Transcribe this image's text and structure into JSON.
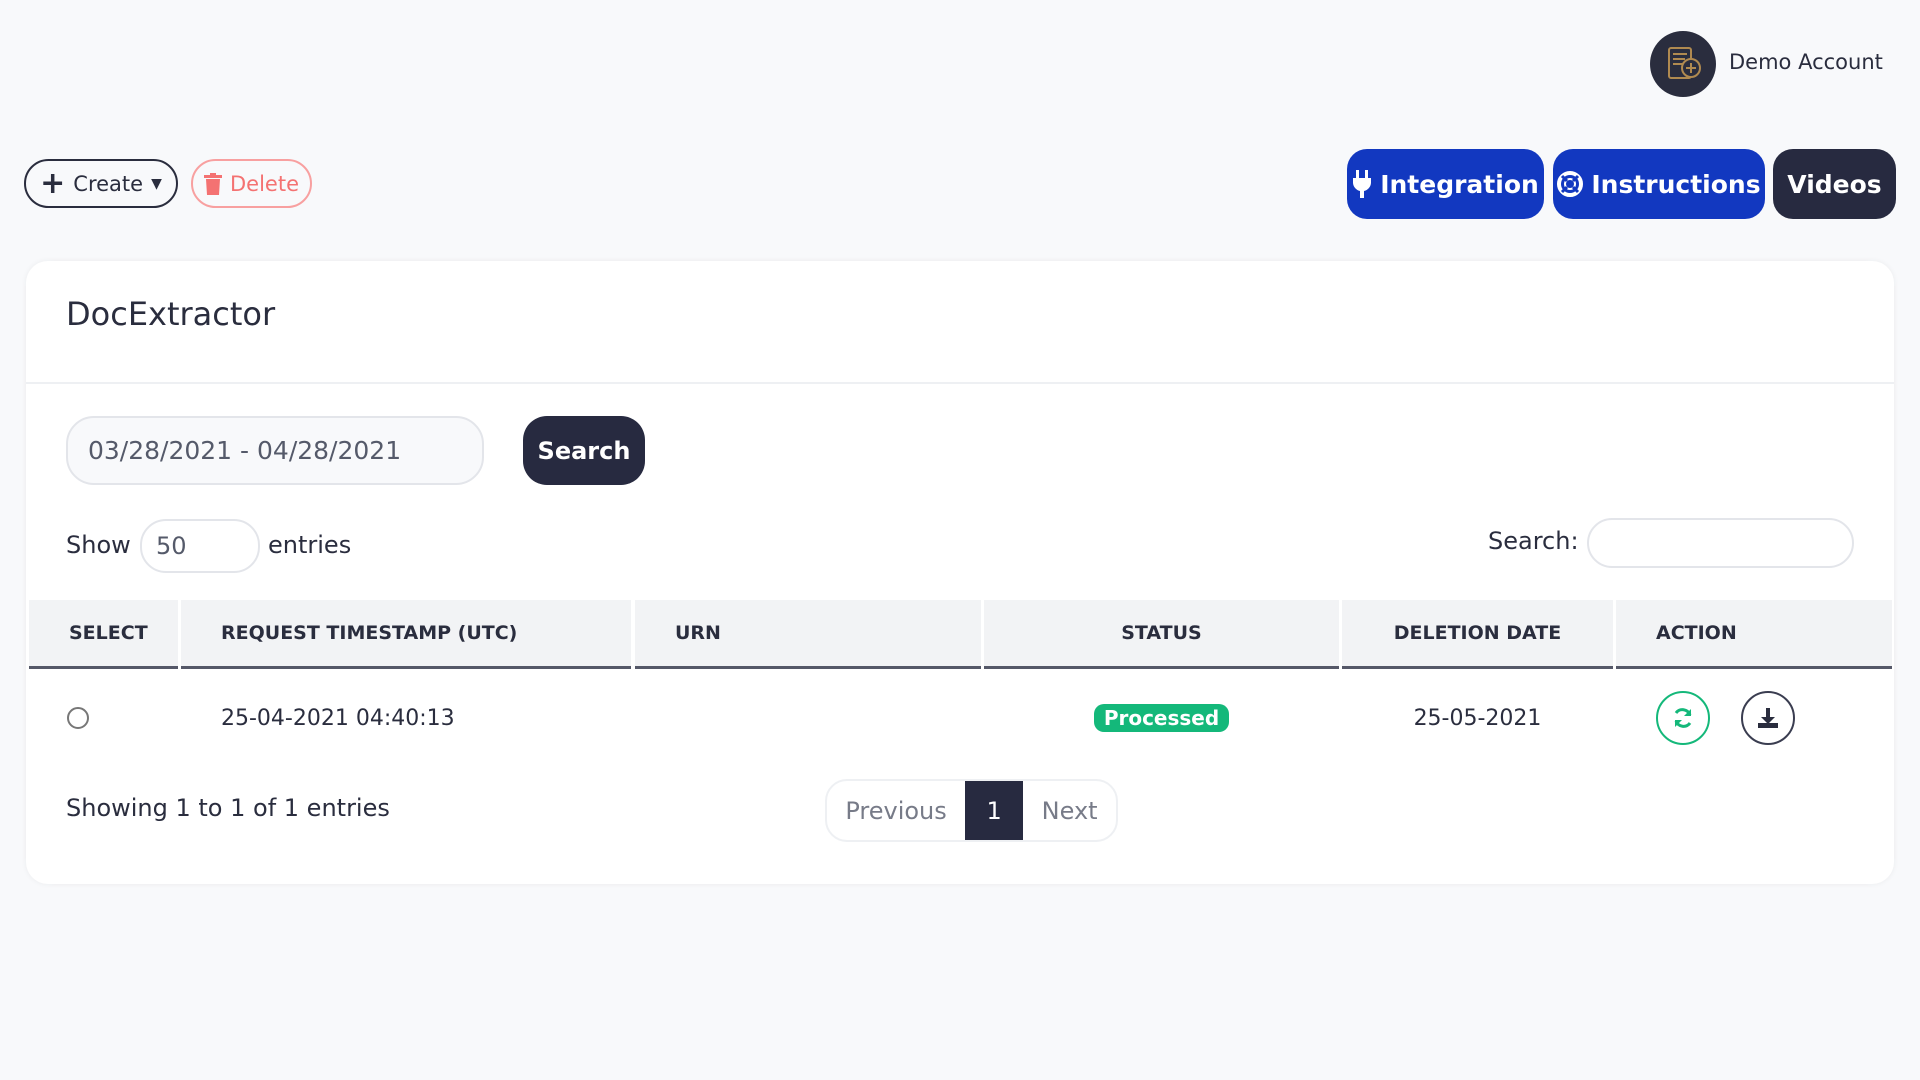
{
  "header": {
    "account_name": "Demo Account",
    "avatar_icon": "document-plus-icon"
  },
  "toolbar": {
    "create_label": "Create",
    "delete_label": "Delete"
  },
  "nav_buttons": {
    "integration": "Integration",
    "instructions": "Instructions",
    "videos": "Videos"
  },
  "colors": {
    "primary": "#1238c0",
    "dark": "#272a40",
    "danger": "#f47272",
    "success": "#14b87a"
  },
  "card": {
    "title": "DocExtractor",
    "date_range": "03/28/2021 - 04/28/2021",
    "search_button": "Search",
    "show_label": "Show",
    "entries_value": "50",
    "entries_label": "entries",
    "search_label": "Search:",
    "search_value": "",
    "columns": [
      "SELECT",
      "REQUEST TIMESTAMP (UTC)",
      "URN",
      "STATUS",
      "DELETION DATE",
      "ACTION"
    ],
    "rows": [
      {
        "timestamp": "25-04-2021 04:40:13",
        "urn": "",
        "status": "Processed",
        "deletion_date": "25-05-2021",
        "actions": [
          "refresh-icon",
          "download-icon"
        ]
      }
    ],
    "info": "Showing 1 to 1 of 1 entries",
    "pagination": {
      "previous": "Previous",
      "current": "1",
      "next": "Next"
    }
  }
}
